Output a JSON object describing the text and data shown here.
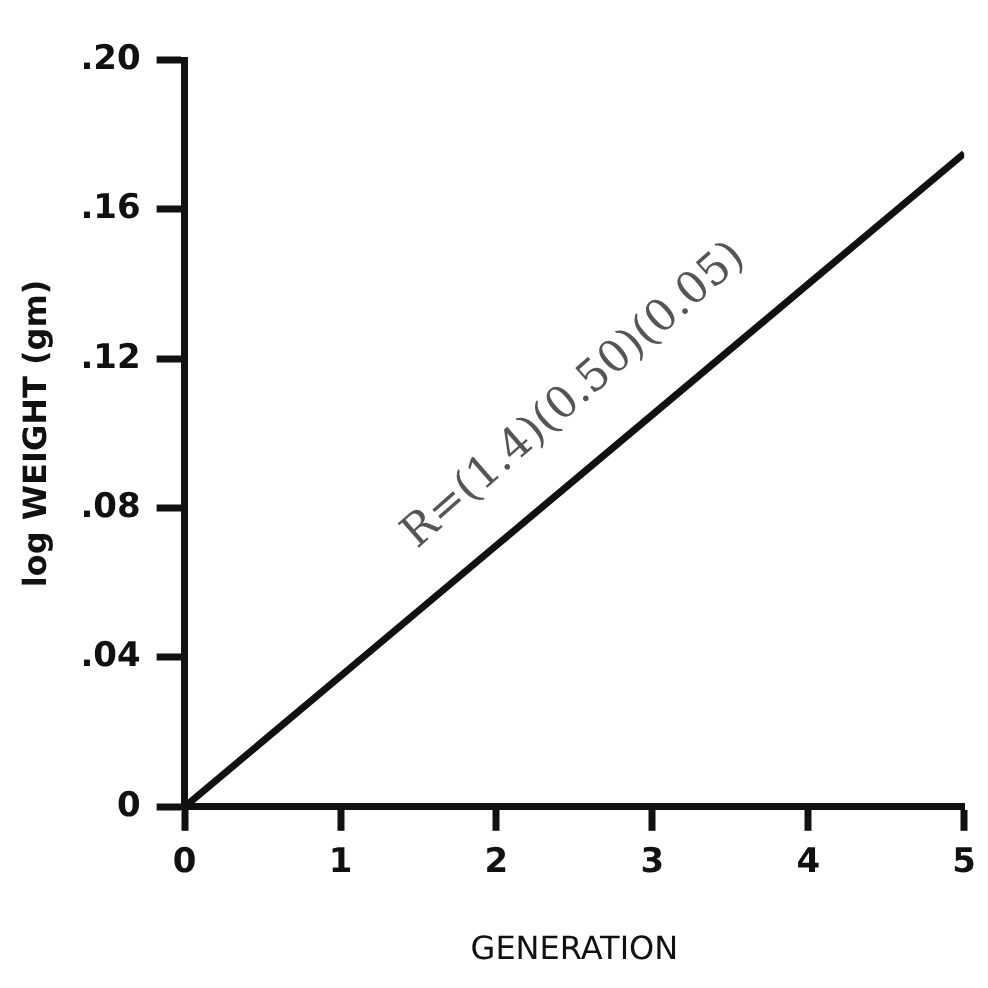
{
  "chart_data": {
    "type": "line",
    "xlabel": "GENERATION",
    "ylabel": "log WEIGHT (gm)",
    "x": [
      0,
      1,
      2,
      3,
      4,
      5
    ],
    "series": [
      {
        "color": "#111111",
        "values": [
          0,
          0.035,
          0.07,
          0.105,
          0.14,
          0.175
        ]
      }
    ],
    "xlim": [
      0,
      5
    ],
    "xticks": [
      0,
      1,
      2,
      3,
      4,
      5
    ],
    "ylim": [
      0,
      0.2
    ],
    "yticks": [
      {
        "value": 0,
        "label": "0"
      },
      {
        "value": 0.04,
        "label": ".04"
      },
      {
        "value": 0.08,
        "label": ".08"
      },
      {
        "value": 0.12,
        "label": ".12"
      },
      {
        "value": 0.16,
        "label": ".16"
      },
      {
        "value": 0.2,
        "label": ".20"
      }
    ],
    "annotations": [
      "R=(1.4)(0.50)(0.05)"
    ],
    "grid": false,
    "legend": false,
    "marker": "none",
    "line_style": "solid"
  }
}
